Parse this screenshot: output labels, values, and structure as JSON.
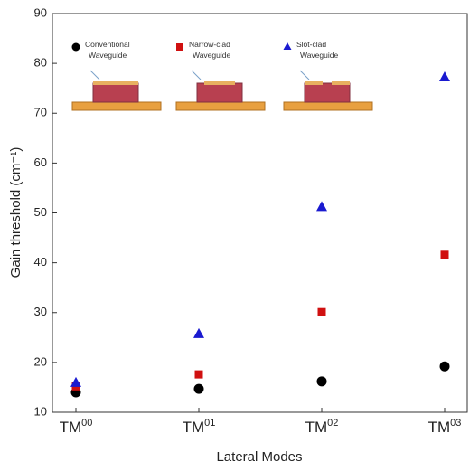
{
  "chart_data": {
    "type": "scatter",
    "categories": [
      "TM00",
      "TM01",
      "TM02",
      "TM03"
    ],
    "x_label": "Lateral Modes",
    "y_label": "Gain threshold (cm⁻¹)",
    "ylim": [
      10,
      90
    ],
    "yticks": [
      10,
      20,
      30,
      40,
      50,
      60,
      70,
      80,
      90
    ],
    "series": [
      {
        "name": "Conventional Waveguide",
        "color": "#000000",
        "marker": "circle",
        "values": [
          14.0,
          14.7,
          16.2,
          19.2
        ]
      },
      {
        "name": "Narrow-clad Waveguide",
        "color": "#d01010",
        "marker": "square",
        "values": [
          15.2,
          17.6,
          30.1,
          41.6
        ]
      },
      {
        "name": "Slot-clad Waveguide",
        "color": "#1a1ad0",
        "marker": "triangle",
        "values": [
          16.0,
          25.8,
          51.3,
          77.3
        ]
      }
    ]
  }
}
